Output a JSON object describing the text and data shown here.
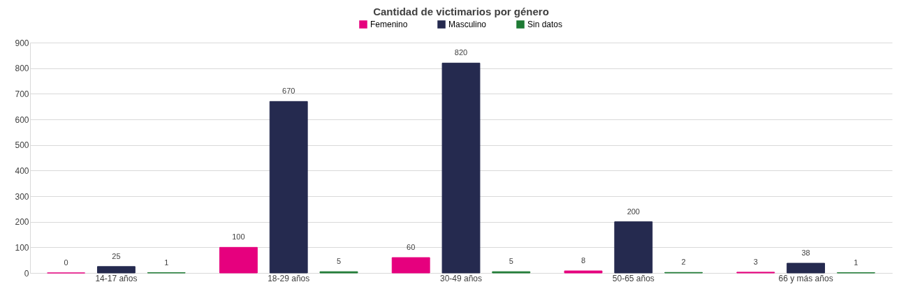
{
  "chart_data": {
    "type": "bar",
    "title": "Cantidad de victimarios por género",
    "categories": [
      "14-17 años",
      "18-29 años",
      "30-49 años",
      "50-65 años",
      "66 y más años"
    ],
    "series": [
      {
        "name": "Femenino",
        "color": "#e6007e",
        "values": [
          0,
          100,
          60,
          8,
          3
        ]
      },
      {
        "name": "Masculino",
        "color": "#252a4f",
        "values": [
          25,
          670,
          820,
          200,
          38
        ]
      },
      {
        "name": "Sin datos",
        "color": "#1e7b34",
        "values": [
          1,
          5,
          5,
          2,
          1
        ]
      }
    ],
    "ylim": [
      0,
      900
    ],
    "yticks": [
      0,
      100,
      200,
      300,
      400,
      500,
      600,
      700,
      800,
      900
    ],
    "grid": "y",
    "legend": "top",
    "data_labels": true
  }
}
